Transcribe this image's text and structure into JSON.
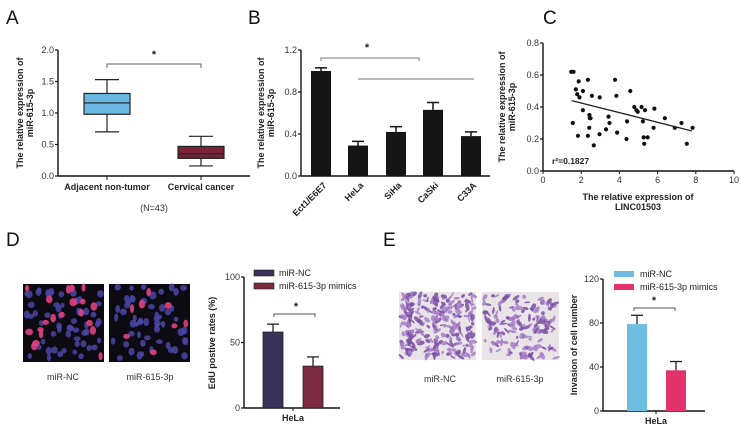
{
  "panels": {
    "A": {
      "letter": "A"
    },
    "B": {
      "letter": "B"
    },
    "C": {
      "letter": "C"
    },
    "D": {
      "letter": "D"
    },
    "E": {
      "letter": "E"
    }
  },
  "colors": {
    "A_adjacent": "#6bb8e3",
    "A_cancer": "#7a2238",
    "B_bars": "#151515",
    "D_nc": "#3b3159",
    "D_mimics": "#7c2a40",
    "E_nc": "#6fbde0",
    "E_mimics": "#e2336b"
  },
  "micrographs": {
    "D": {
      "labels": [
        "miR-NC",
        "miR-615-3p"
      ],
      "type": "EdU fluorescence"
    },
    "E": {
      "labels": [
        "miR-NC",
        "miR-615-3p"
      ],
      "type": "Transwell invasion (crystal violet)"
    }
  },
  "chart_data": [
    {
      "panel": "A",
      "type": "box",
      "title": "",
      "ylabel": "The relative expression of miR-615-3p",
      "xlabel": "(N=43)",
      "ylim": [
        0,
        2.0
      ],
      "yticks": [
        "0.0",
        "0.5",
        "1.0",
        "1.5",
        "2.0"
      ],
      "categories": [
        "Adjacent non-tumor",
        "Cervical cancer"
      ],
      "series": [
        {
          "name": "Adjacent non-tumor",
          "min": 0.7,
          "q1": 0.98,
          "median": 1.16,
          "q3": 1.31,
          "max": 1.53
        },
        {
          "name": "Cervical cancer",
          "min": 0.16,
          "q1": 0.28,
          "median": 0.35,
          "q3": 0.47,
          "max": 0.63
        }
      ],
      "annotations": [
        {
          "text": "*",
          "between": [
            "Adjacent non-tumor",
            "Cervical cancer"
          ]
        }
      ],
      "grid": false
    },
    {
      "panel": "B",
      "type": "bar",
      "title": "",
      "ylabel": "The relative expression of miR-615-3p",
      "xlabel": "",
      "ylim": [
        0,
        1.2
      ],
      "yticks": [
        "0.0",
        "0.4",
        "0.8",
        "1.2"
      ],
      "categories": [
        "Ect1/E6E7",
        "HeLa",
        "SiHa",
        "CaSki",
        "C33A"
      ],
      "values": [
        1.0,
        0.29,
        0.42,
        0.63,
        0.38
      ],
      "errors": [
        0.03,
        0.04,
        0.05,
        0.07,
        0.04
      ],
      "annotations": [
        {
          "text": "*",
          "between": [
            "Ect1/E6E7",
            "HeLa–C33A"
          ]
        }
      ],
      "grid": false
    },
    {
      "panel": "C",
      "type": "scatter",
      "title": "",
      "xlabel": "The relative expression of LINC01503",
      "ylabel": "The relative expression of miR-615-3p",
      "xlim": [
        0,
        10
      ],
      "ylim": [
        0,
        0.8
      ],
      "xticks": [
        "0",
        "2",
        "4",
        "6",
        "8",
        "10"
      ],
      "yticks": [
        "0.0",
        "0.2",
        "0.4",
        "0.6",
        "0.8"
      ],
      "points": [
        [
          1.48,
          0.62
        ],
        [
          1.6,
          0.62
        ],
        [
          1.87,
          0.56
        ],
        [
          1.72,
          0.51
        ],
        [
          2.09,
          0.5
        ],
        [
          1.79,
          0.48
        ],
        [
          1.91,
          0.46
        ],
        [
          2.35,
          0.57
        ],
        [
          2.56,
          0.47
        ],
        [
          2.97,
          0.46
        ],
        [
          3.77,
          0.57
        ],
        [
          3.84,
          0.47
        ],
        [
          4.57,
          0.5
        ],
        [
          4.78,
          0.4
        ],
        [
          4.89,
          0.38
        ],
        [
          4.96,
          0.37
        ],
        [
          5.16,
          0.4
        ],
        [
          5.34,
          0.38
        ],
        [
          5.83,
          0.39
        ],
        [
          1.56,
          0.3
        ],
        [
          2.09,
          0.38
        ],
        [
          2.43,
          0.35
        ],
        [
          2.45,
          0.33
        ],
        [
          2.42,
          0.27
        ],
        [
          3.43,
          0.34
        ],
        [
          3.48,
          0.3
        ],
        [
          2.49,
          0.33
        ],
        [
          3.3,
          0.26
        ],
        [
          3.88,
          0.24
        ],
        [
          2.96,
          0.23
        ],
        [
          1.83,
          0.22
        ],
        [
          2.35,
          0.22
        ],
        [
          2.66,
          0.16
        ],
        [
          4.4,
          0.31
        ],
        [
          4.37,
          0.2
        ],
        [
          5.27,
          0.21
        ],
        [
          5.48,
          0.21
        ],
        [
          5.3,
          0.17
        ],
        [
          5.23,
          0.31
        ],
        [
          5.79,
          0.27
        ],
        [
          6.38,
          0.33
        ],
        [
          7.25,
          0.3
        ],
        [
          6.9,
          0.27
        ],
        [
          7.83,
          0.27
        ],
        [
          7.53,
          0.17
        ]
      ],
      "fit_line": {
        "x": [
          1.5,
          7.8
        ],
        "y": [
          0.44,
          0.25
        ]
      },
      "annotations": [
        {
          "text": "r²=0.1827"
        }
      ],
      "grid": false
    },
    {
      "panel": "D",
      "type": "bar",
      "title": "",
      "ylabel": "EdU postive rates (%)",
      "xlabel": "HeLa",
      "ylim": [
        0,
        100
      ],
      "yticks": [
        "0",
        "50",
        "100"
      ],
      "categories": [
        "HeLa"
      ],
      "series": [
        {
          "name": "miR-NC",
          "values": [
            58
          ],
          "errors": [
            6
          ]
        },
        {
          "name": "miR-615-3p mimics",
          "values": [
            32
          ],
          "errors": [
            7
          ]
        }
      ],
      "legend": {
        "position": "top",
        "entries": [
          "miR-NC",
          "miR-615-3p mimics"
        ]
      },
      "annotations": [
        {
          "text": "*"
        }
      ],
      "grid": false
    },
    {
      "panel": "E",
      "type": "bar",
      "title": "",
      "ylabel": "Invasion of cell number",
      "xlabel": "HeLa",
      "ylim": [
        0,
        120
      ],
      "yticks": [
        "0",
        "40",
        "80",
        "120"
      ],
      "categories": [
        "HeLa"
      ],
      "series": [
        {
          "name": "miR-NC",
          "values": [
            79
          ],
          "errors": [
            8
          ]
        },
        {
          "name": "miR-615-3p mimics",
          "values": [
            37
          ],
          "errors": [
            8
          ]
        }
      ],
      "legend": {
        "position": "top",
        "entries": [
          "miR-NC",
          "miR-615-3p mimics"
        ]
      },
      "annotations": [
        {
          "text": "*"
        }
      ],
      "grid": false
    }
  ]
}
